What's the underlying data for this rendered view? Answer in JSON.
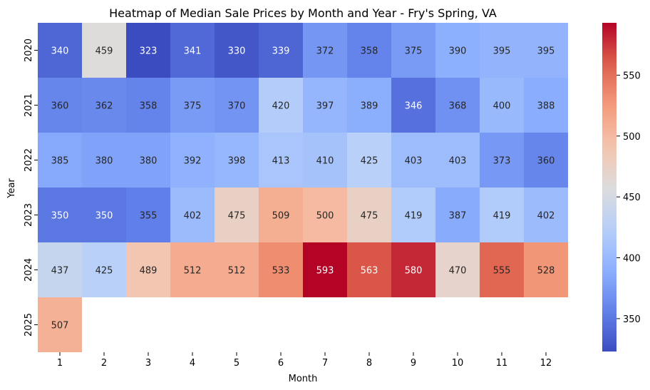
{
  "chart_data": {
    "type": "heatmap",
    "title": "Heatmap of Median Sale Prices by Month and Year - Fry's Spring, VA",
    "xlabel": "Month",
    "ylabel": "Year",
    "x_categories": [
      "1",
      "2",
      "3",
      "4",
      "5",
      "6",
      "7",
      "8",
      "9",
      "10",
      "11",
      "12"
    ],
    "y_categories": [
      "2020",
      "2021",
      "2022",
      "2023",
      "2024",
      "2025"
    ],
    "values": [
      [
        340,
        459,
        323,
        341,
        330,
        339,
        372,
        358,
        375,
        390,
        395,
        395
      ],
      [
        360,
        362,
        358,
        375,
        370,
        420,
        397,
        389,
        346,
        368,
        400,
        388
      ],
      [
        385,
        380,
        380,
        392,
        398,
        413,
        410,
        425,
        403,
        403,
        373,
        360
      ],
      [
        350,
        350,
        355,
        402,
        475,
        509,
        500,
        475,
        419,
        387,
        419,
        402
      ],
      [
        437,
        425,
        489,
        512,
        512,
        533,
        593,
        563,
        580,
        470,
        555,
        528
      ],
      [
        507,
        null,
        null,
        null,
        null,
        null,
        null,
        null,
        null,
        null,
        null,
        null
      ]
    ],
    "colormap": "coolwarm",
    "vmin": 323,
    "vmax": 593,
    "colorbar_ticks": [
      350,
      400,
      450,
      500,
      550
    ]
  }
}
